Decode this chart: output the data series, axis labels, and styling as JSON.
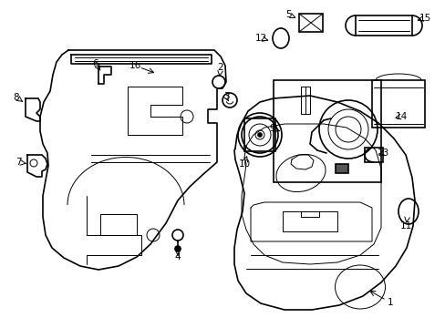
{
  "bg_color": "#ffffff",
  "lc": "#000000",
  "lw": 1.2,
  "tlw": 0.7
}
